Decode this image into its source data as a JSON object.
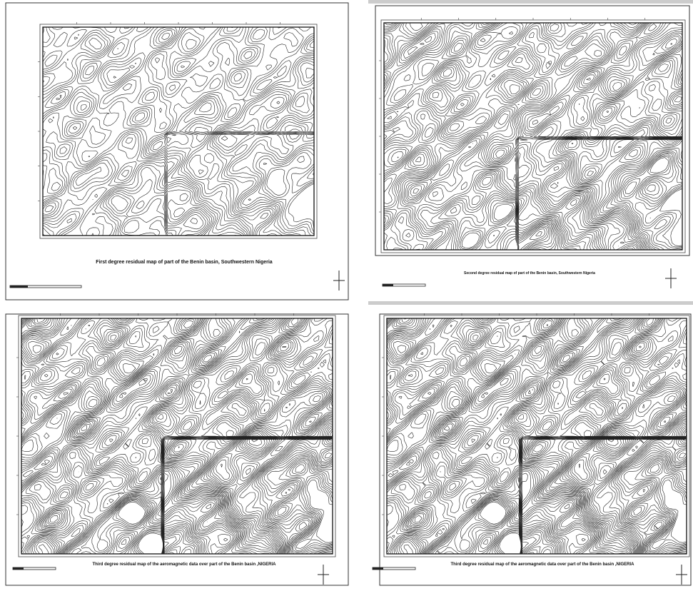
{
  "panels": [
    {
      "caption": "First degree residual map of part of the Benin basin, Southwestern Nigeria"
    },
    {
      "caption": "Second degree residual map of part of the Benin basin, Southwestern Nigeria"
    },
    {
      "caption": "Third degree residual map of the aeromagnetic data over part of the Benin basin ,NIGERIA"
    },
    {
      "caption": "Third degree residual map of the aeromagnetic data over part of the Benin basin ,NIGERIA"
    }
  ]
}
